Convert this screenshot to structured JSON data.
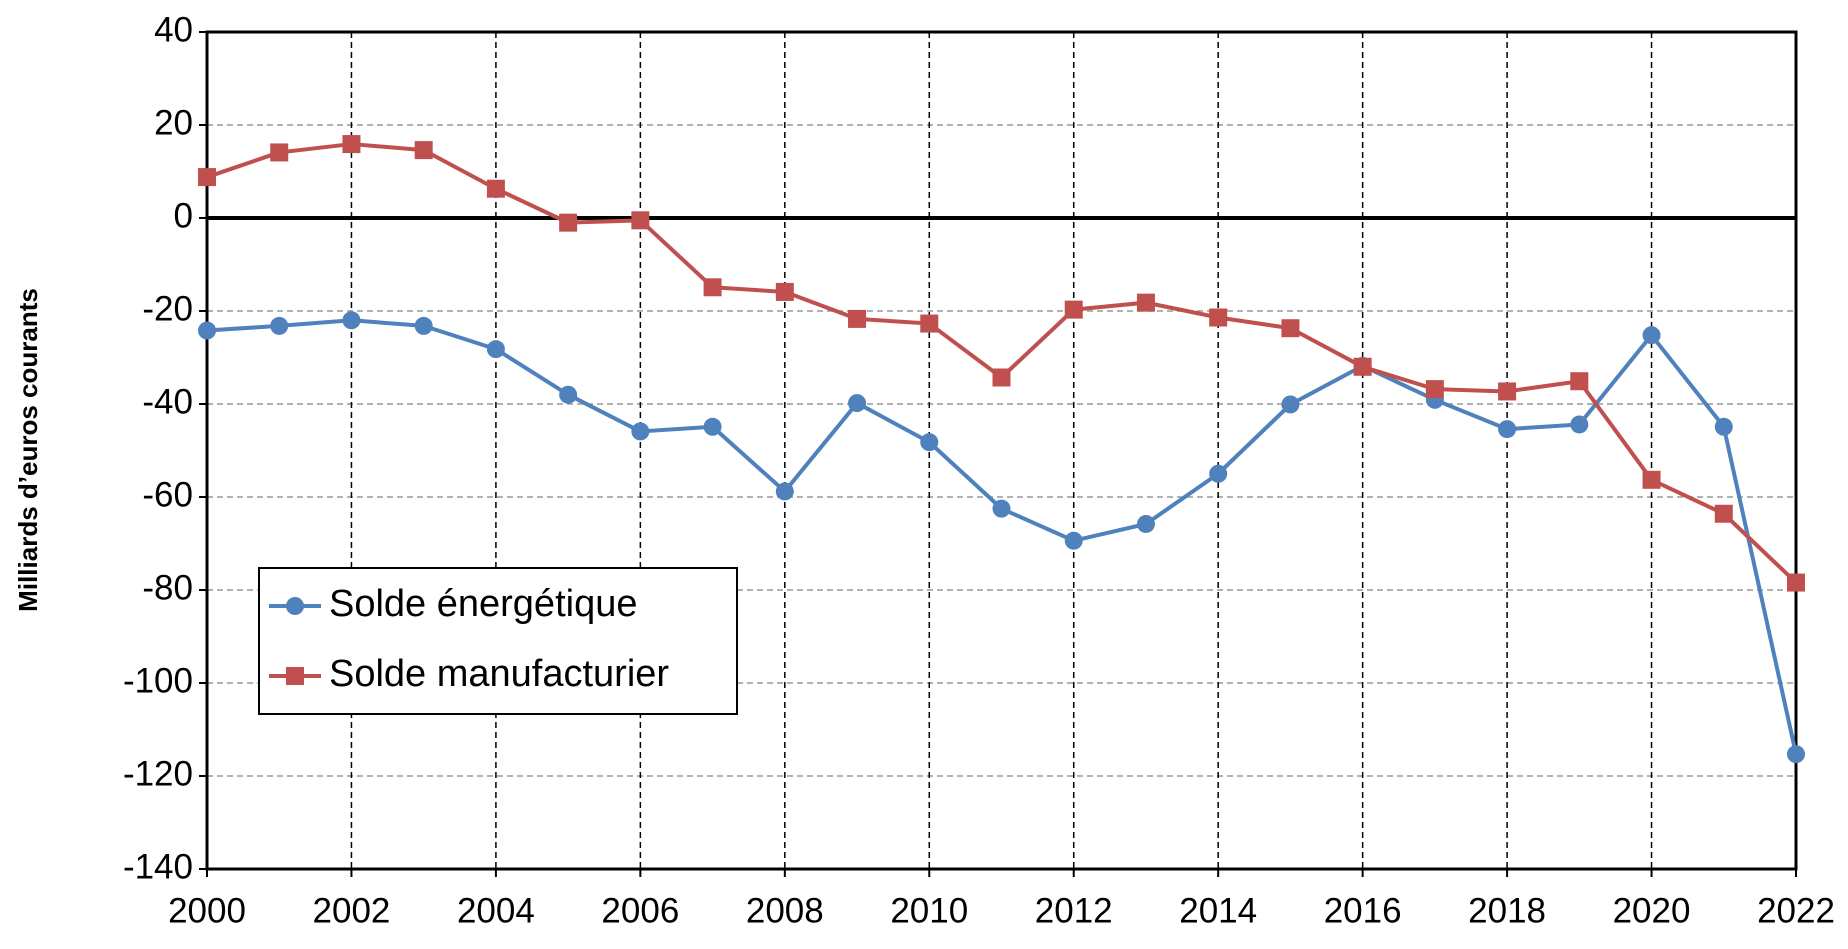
{
  "chart_data": {
    "type": "line",
    "y_label": "Milliards d’euros courants",
    "x": [
      2000,
      2001,
      2002,
      2003,
      2004,
      2005,
      2006,
      2007,
      2008,
      2009,
      2010,
      2011,
      2012,
      2013,
      2014,
      2015,
      2016,
      2017,
      2018,
      2019,
      2020,
      2021,
      2022
    ],
    "series": [
      {
        "name": "Solde énergétique",
        "color": "#4f81bd",
        "marker": "circle",
        "values": [
          -24.2,
          -23.2,
          -22,
          -23.2,
          -28.2,
          -38,
          -45.9,
          -44.9,
          -58.8,
          -39.8,
          -48.2,
          -62.5,
          -69.4,
          -65.8,
          -55,
          -40.1,
          -31.8,
          -39.1,
          -45.4,
          -44.4,
          -25.2,
          -44.9,
          -115.3
        ]
      },
      {
        "name": "Solde manufacturier",
        "color": "#c0504d",
        "marker": "square",
        "values": [
          8.8,
          14.1,
          15.9,
          14.6,
          6.3,
          -1,
          -0.5,
          -14.9,
          -15.9,
          -21.7,
          -22.7,
          -34.3,
          -19.7,
          -18.2,
          -21.4,
          -23.7,
          -32,
          -36.8,
          -37.3,
          -35.1,
          -56.3,
          -63.6,
          -78.4
        ]
      }
    ],
    "xlim": [
      2000,
      2022
    ],
    "xticks": [
      2000,
      2002,
      2004,
      2006,
      2008,
      2010,
      2012,
      2014,
      2016,
      2018,
      2020,
      2022
    ],
    "ylim": [
      -140,
      40
    ],
    "yticks": [
      -140,
      -120,
      -100,
      -80,
      -60,
      -40,
      -20,
      0,
      20,
      40
    ],
    "grid": true,
    "legend": "lower left"
  }
}
